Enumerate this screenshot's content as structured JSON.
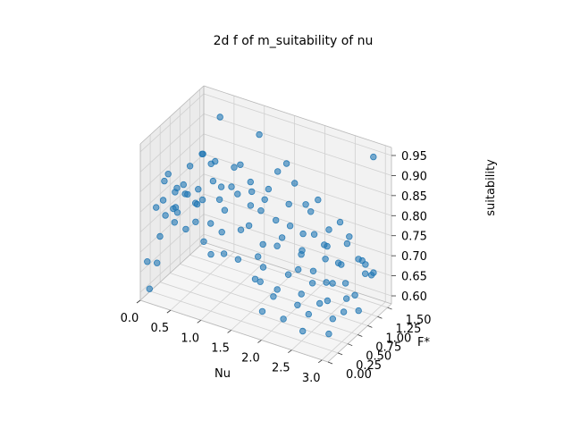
{
  "chart_data": {
    "type": "scatter",
    "title": "2d f of m_suitability of nu",
    "xlabel": "Nu",
    "ylabel": "F*",
    "zlabel": "suitability",
    "xlim": [
      0.0,
      3.1
    ],
    "ylim": [
      0.0,
      1.6
    ],
    "zlim": [
      0.58,
      0.97
    ],
    "x_ticks": [
      "0.0",
      "0.5",
      "1.0",
      "1.5",
      "2.0",
      "2.5",
      "3.0"
    ],
    "y_ticks": [
      "0.00",
      "0.25",
      "0.50",
      "0.75",
      "1.00",
      "1.25",
      "1.50"
    ],
    "z_ticks": [
      "0.60",
      "0.65",
      "0.70",
      "0.75",
      "0.80",
      "0.85",
      "0.90",
      "0.95"
    ],
    "grid": true,
    "marker_color": "#1f77b4",
    "points": [
      [
        0.13,
        0.2,
        0.8
      ],
      [
        0.2,
        0.3,
        0.86
      ],
      [
        0.28,
        0.15,
        0.83
      ],
      [
        0.35,
        0.4,
        0.78
      ],
      [
        0.42,
        0.25,
        0.81
      ],
      [
        0.5,
        0.1,
        0.79
      ],
      [
        0.55,
        0.35,
        0.84
      ],
      [
        0.62,
        0.2,
        0.77
      ],
      [
        0.7,
        0.5,
        0.82
      ],
      [
        0.1,
        0.55,
        0.85
      ],
      [
        0.18,
        0.65,
        0.81
      ],
      [
        0.25,
        0.75,
        0.79
      ],
      [
        0.32,
        0.6,
        0.83
      ],
      [
        0.4,
        0.85,
        0.8
      ],
      [
        0.48,
        0.7,
        0.78
      ],
      [
        0.58,
        0.95,
        0.82
      ],
      [
        0.65,
        1.05,
        0.8
      ],
      [
        0.72,
        1.2,
        0.79
      ],
      [
        0.8,
        1.3,
        0.84
      ],
      [
        0.3,
        1.1,
        0.86
      ],
      [
        0.15,
        1.35,
        0.83
      ],
      [
        0.22,
        1.45,
        0.8
      ],
      [
        0.05,
        0.1,
        0.67
      ],
      [
        0.08,
        0.3,
        0.65
      ],
      [
        0.12,
        0.05,
        0.61
      ],
      [
        0.03,
        0.45,
        0.7
      ],
      [
        0.9,
        0.4,
        0.78
      ],
      [
        0.95,
        0.15,
        0.76
      ],
      [
        1.0,
        0.6,
        0.8
      ],
      [
        1.05,
        0.85,
        0.82
      ],
      [
        1.1,
        1.1,
        0.83
      ],
      [
        1.15,
        0.3,
        0.78
      ],
      [
        1.2,
        1.4,
        0.79
      ],
      [
        1.25,
        0.2,
        0.74
      ],
      [
        1.3,
        0.55,
        0.77
      ],
      [
        1.35,
        0.75,
        0.85
      ],
      [
        1.4,
        1.0,
        0.81
      ],
      [
        1.45,
        1.25,
        0.86
      ],
      [
        1.5,
        0.45,
        0.8
      ],
      [
        1.55,
        0.1,
        0.75
      ],
      [
        1.6,
        0.65,
        0.74
      ],
      [
        1.65,
        0.9,
        0.78
      ],
      [
        1.7,
        1.15,
        0.8
      ],
      [
        1.75,
        1.5,
        0.77
      ],
      [
        1.8,
        0.35,
        0.72
      ],
      [
        1.85,
        0.2,
        0.7
      ],
      [
        1.9,
        0.55,
        0.76
      ],
      [
        1.95,
        0.8,
        0.79
      ],
      [
        2.0,
        1.05,
        0.75
      ],
      [
        2.05,
        1.35,
        0.81
      ],
      [
        2.1,
        0.15,
        0.68
      ],
      [
        2.15,
        0.45,
        0.71
      ],
      [
        2.2,
        0.7,
        0.74
      ],
      [
        2.25,
        0.95,
        0.77
      ],
      [
        2.3,
        1.2,
        0.72
      ],
      [
        2.35,
        1.45,
        0.76
      ],
      [
        2.4,
        0.3,
        0.66
      ],
      [
        2.45,
        0.6,
        0.69
      ],
      [
        2.5,
        0.85,
        0.73
      ],
      [
        2.55,
        1.1,
        0.7
      ],
      [
        2.6,
        1.3,
        0.75
      ],
      [
        2.65,
        0.05,
        0.63
      ],
      [
        2.7,
        0.4,
        0.67
      ],
      [
        2.75,
        0.65,
        0.7
      ],
      [
        2.8,
        0.9,
        0.68
      ],
      [
        2.85,
        1.15,
        0.72
      ],
      [
        2.9,
        1.4,
        0.66
      ],
      [
        2.95,
        0.25,
        0.62
      ],
      [
        3.0,
        0.55,
        0.65
      ],
      [
        3.02,
        0.8,
        0.67
      ],
      [
        2.7,
        1.55,
        0.64
      ],
      [
        2.4,
        1.55,
        0.7
      ],
      [
        2.1,
        1.55,
        0.72
      ],
      [
        1.8,
        1.55,
        0.75
      ],
      [
        2.95,
        1.0,
        0.61
      ],
      [
        2.85,
        0.5,
        0.63
      ],
      [
        2.55,
        0.35,
        0.64
      ],
      [
        2.3,
        0.55,
        0.66
      ],
      [
        2.2,
        0.25,
        0.62
      ],
      [
        2.0,
        0.4,
        0.67
      ],
      [
        1.95,
        0.1,
        0.64
      ],
      [
        1.7,
        0.3,
        0.69
      ],
      [
        2.6,
        0.75,
        0.64
      ],
      [
        2.75,
        1.0,
        0.63
      ],
      [
        2.5,
        1.25,
        0.68
      ],
      [
        2.9,
        1.25,
        0.7
      ],
      [
        3.0,
        1.3,
        0.68
      ],
      [
        2.45,
        0.95,
        0.66
      ],
      [
        2.3,
        0.85,
        0.69
      ],
      [
        2.15,
        0.7,
        0.7
      ],
      [
        1.6,
        1.45,
        0.82
      ],
      [
        0.4,
        1.4,
        0.93
      ],
      [
        0.95,
        1.55,
        0.9
      ],
      [
        2.9,
        1.45,
        0.95
      ],
      [
        0.05,
        0.8,
        0.78
      ],
      [
        0.1,
        1.1,
        0.82
      ],
      [
        0.45,
        1.2,
        0.84
      ],
      [
        0.6,
        1.45,
        0.81
      ],
      [
        0.85,
        0.7,
        0.81
      ],
      [
        1.2,
        0.95,
        0.79
      ],
      [
        1.5,
        0.75,
        0.81
      ],
      [
        1.65,
        0.45,
        0.73
      ],
      [
        0.75,
        0.25,
        0.79
      ],
      [
        0.35,
        0.1,
        0.8
      ],
      [
        2.05,
        0.95,
        0.72
      ],
      [
        2.65,
        1.55,
        0.67
      ],
      [
        2.35,
        1.05,
        0.74
      ],
      [
        1.85,
        0.75,
        0.76
      ],
      [
        0.55,
        0.55,
        0.8
      ],
      [
        0.25,
        0.45,
        0.78
      ],
      [
        1.4,
        1.55,
        0.85
      ],
      [
        1.1,
        0.1,
        0.74
      ]
    ]
  }
}
